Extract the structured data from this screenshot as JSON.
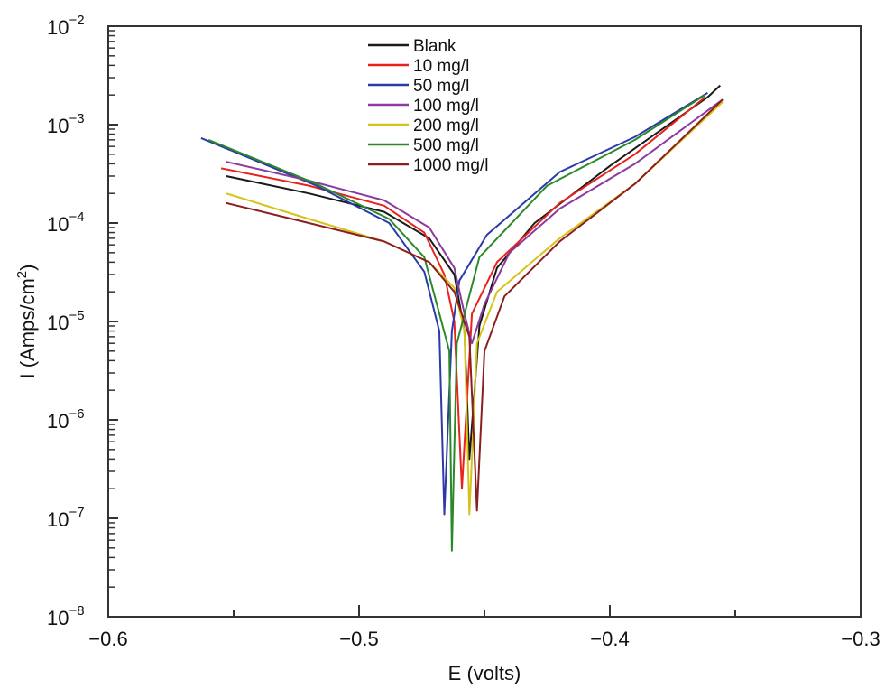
{
  "chart_data": {
    "type": "line",
    "title": "",
    "xlabel": "E (volts)",
    "ylabel": "I (Amps/cm2)",
    "xlim": [
      -0.6,
      -0.3
    ],
    "ylim": [
      1e-08,
      0.01
    ],
    "yscale": "log",
    "grid": false,
    "legend_position": "upper center",
    "x_ticks": [
      "-0.6",
      "-0.5",
      "-0.4",
      "-0.3"
    ],
    "y_ticks": [
      "10^-8",
      "10^-7",
      "10^-6",
      "10^-5",
      "10^-4",
      "10^-3",
      "10^-2"
    ],
    "series": [
      {
        "name": "Blank",
        "color": "#1a1a1a",
        "E": [
          -0.553,
          -0.52,
          -0.49,
          -0.472,
          -0.462,
          -0.458,
          -0.456,
          -0.452,
          -0.445,
          -0.43,
          -0.4,
          -0.361,
          -0.356
        ],
        "I": [
          0.0003,
          0.0002,
          0.00013,
          7e-05,
          3e-05,
          8e-06,
          4e-07,
          9e-06,
          3.5e-05,
          0.0001,
          0.00038,
          0.0019,
          0.0025
        ]
      },
      {
        "name": "10 mg/l",
        "color": "#e8221c",
        "E": [
          -0.555,
          -0.52,
          -0.49,
          -0.474,
          -0.466,
          -0.462,
          -0.459,
          -0.455,
          -0.445,
          -0.42,
          -0.39,
          -0.362
        ],
        "I": [
          0.00036,
          0.00024,
          0.00015,
          8e-05,
          3e-05,
          1e-05,
          2e-07,
          1.2e-05,
          4e-05,
          0.00016,
          0.0005,
          0.0019
        ]
      },
      {
        "name": "50 mg/l",
        "color": "#2b3aa8",
        "E": [
          -0.563,
          -0.517,
          -0.488,
          -0.474,
          -0.468,
          -0.466,
          -0.463,
          -0.46,
          -0.449,
          -0.42,
          -0.39,
          -0.361
        ],
        "I": [
          0.00073,
          0.00024,
          0.0001,
          3.2e-05,
          8e-06,
          1.1e-07,
          8e-06,
          2.6e-05,
          7.6e-05,
          0.00033,
          0.00075,
          0.0021
        ]
      },
      {
        "name": "100 mg/l",
        "color": "#8b3a9e",
        "E": [
          -0.553,
          -0.52,
          -0.49,
          -0.472,
          -0.462,
          -0.458,
          -0.455,
          -0.45,
          -0.44,
          -0.42,
          -0.39,
          -0.355
        ],
        "I": [
          0.00042,
          0.00027,
          0.00017,
          9e-05,
          3.5e-05,
          1.2e-05,
          6e-06,
          1.5e-05,
          5e-05,
          0.00014,
          0.0004,
          0.0018
        ]
      },
      {
        "name": "200 mg/l",
        "color": "#d6c319",
        "E": [
          -0.553,
          -0.52,
          -0.49,
          -0.472,
          -0.462,
          -0.458,
          -0.456,
          -0.453,
          -0.445,
          -0.42,
          -0.39,
          -0.355
        ],
        "I": [
          0.0002,
          0.00011,
          6.5e-05,
          4e-05,
          2.2e-05,
          8e-06,
          1.1e-07,
          6e-06,
          2e-05,
          7e-05,
          0.00025,
          0.0017
        ]
      },
      {
        "name": "500 mg/l",
        "color": "#2a8a2a",
        "E": [
          -0.56,
          -0.517,
          -0.488,
          -0.474,
          -0.468,
          -0.464,
          -0.463,
          -0.461,
          -0.452,
          -0.425,
          -0.39,
          -0.362
        ],
        "I": [
          0.0007,
          0.00025,
          0.00011,
          4.5e-05,
          1.2e-05,
          5e-06,
          4.7e-08,
          6e-06,
          4.5e-05,
          0.00024,
          0.0007,
          0.002
        ]
      },
      {
        "name": "1000 mg/l",
        "color": "#8b1f1f",
        "E": [
          -0.553,
          -0.52,
          -0.49,
          -0.472,
          -0.462,
          -0.456,
          -0.453,
          -0.45,
          -0.442,
          -0.42,
          -0.39,
          -0.355
        ],
        "I": [
          0.00016,
          0.0001,
          6.5e-05,
          4e-05,
          2e-05,
          7e-06,
          1.2e-07,
          5e-06,
          1.8e-05,
          6.5e-05,
          0.00025,
          0.0018
        ]
      }
    ]
  },
  "axes": {
    "xlabel": "E (volts)",
    "ylabel_main": "I (Amps/cm",
    "ylabel_sup": "2",
    "ylabel_close": ")",
    "x_tick_labels": [
      "−0.6",
      "−0.5",
      "−0.4",
      "−0.3"
    ],
    "y_tick_base": "10",
    "y_tick_exps": [
      "−2",
      "−3",
      "−4",
      "−5",
      "−6",
      "−7",
      "−8"
    ]
  },
  "legend": {
    "items": [
      {
        "label": "Blank",
        "color": "#1a1a1a"
      },
      {
        "label": "10 mg/l",
        "color": "#e8221c"
      },
      {
        "label": "50 mg/l",
        "color": "#2b3aa8"
      },
      {
        "label": "100 mg/l",
        "color": "#8b3a9e"
      },
      {
        "label": "200 mg/l",
        "color": "#d6c319"
      },
      {
        "label": "500 mg/l",
        "color": "#2a8a2a"
      },
      {
        "label": "1000 mg/l",
        "color": "#8b1f1f"
      }
    ]
  }
}
